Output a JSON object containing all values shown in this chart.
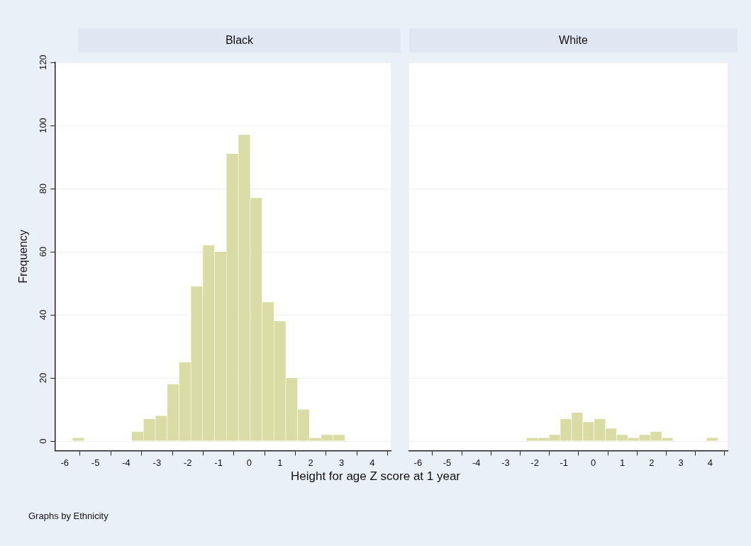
{
  "chart_data": [
    {
      "type": "histogram",
      "title": "Black",
      "xlabel": "Height for age Z score at 1 year",
      "ylabel": "Frequency",
      "annotations": [
        "Graphs by Ethnicity"
      ],
      "bins": [
        -5.75,
        -5.37,
        -4.98,
        -4.6,
        -4.21,
        -3.83,
        -3.44,
        -3.06,
        -2.67,
        -2.29,
        -1.9,
        -1.52,
        -1.13,
        -0.75,
        -0.36,
        0.03,
        0.41,
        0.8,
        1.18,
        1.57,
        1.95,
        2.34,
        2.72,
        3.11,
        3.49,
        3.88,
        4.26
      ],
      "values": [
        1,
        0,
        0,
        0,
        0,
        3,
        7,
        8,
        18,
        25,
        49,
        62,
        60,
        91,
        97,
        77,
        44,
        38,
        20,
        10,
        1,
        2,
        2,
        0,
        0,
        0
      ],
      "color": "#d9dca4",
      "xlim": [
        -6.3,
        4.6
      ],
      "xticks": [
        -6,
        -5,
        -4,
        -3,
        -2,
        -1,
        0,
        1,
        2,
        3,
        4
      ],
      "ylim": [
        -3,
        120
      ],
      "yticks": [
        0,
        20,
        40,
        60,
        80,
        100,
        120
      ],
      "grid": "y",
      "legend": false
    },
    {
      "type": "histogram",
      "title": "White",
      "bins": [
        -5.75,
        -5.37,
        -4.98,
        -4.6,
        -4.21,
        -3.83,
        -3.44,
        -3.06,
        -2.67,
        -2.29,
        -1.9,
        -1.52,
        -1.13,
        -0.75,
        -0.36,
        0.03,
        0.41,
        0.8,
        1.18,
        1.57,
        1.95,
        2.34,
        2.72,
        3.11,
        3.49,
        3.88,
        4.26
      ],
      "values": [
        0,
        0,
        0,
        0,
        0,
        0,
        0,
        0,
        0,
        1,
        1,
        2,
        7,
        9,
        6,
        7,
        4,
        2,
        1,
        2,
        3,
        1,
        0,
        0,
        0,
        1
      ],
      "color": "#d9dca4",
      "xlim": [
        -6.3,
        4.6
      ],
      "xticks": [
        -6,
        -5,
        -4,
        -3,
        -2,
        -1,
        0,
        1,
        2,
        3,
        4
      ],
      "ylim": [
        -3,
        120
      ],
      "yticks": [
        0,
        20,
        40,
        60,
        80,
        100,
        120
      ],
      "grid": "y",
      "legend": false,
      "tick_labels": "x"
    }
  ]
}
